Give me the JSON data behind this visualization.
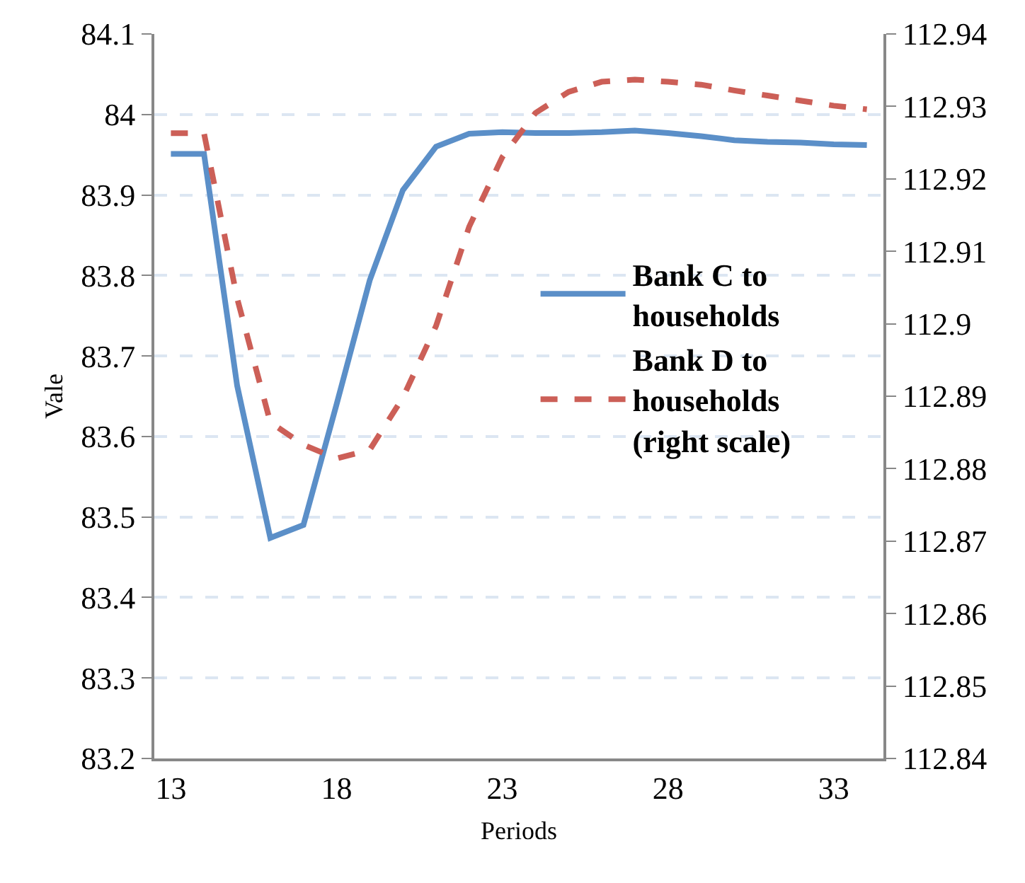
{
  "chart_data": {
    "type": "line",
    "xlabel": "Periods",
    "ylabel": "Vale",
    "x": [
      13,
      14,
      15,
      16,
      17,
      18,
      19,
      20,
      21,
      22,
      23,
      24,
      25,
      26,
      27,
      28,
      29,
      30,
      31,
      32,
      33,
      34
    ],
    "series": [
      {
        "name": "Bank C to households",
        "color": "#5b8fc8",
        "line_style": "solid",
        "values": [
          83.951,
          83.951,
          83.663,
          83.474,
          83.49,
          83.64,
          83.794,
          83.906,
          83.96,
          83.976,
          83.978,
          83.977,
          83.977,
          83.978,
          83.98,
          83.977,
          83.973,
          83.968,
          83.966,
          83.965,
          83.963,
          83.962
        ]
      },
      {
        "name": "Bank D to households (right scale)",
        "color": "#cc5f57",
        "line_style": "dashed",
        "axis": "y2",
        "values": [
          112.9263,
          112.9263,
          112.9035,
          112.8864,
          112.8833,
          112.8814,
          112.8826,
          112.8898,
          112.8997,
          112.9134,
          112.923,
          112.9291,
          112.932,
          112.9334,
          112.9337,
          112.9334,
          112.933,
          112.9322,
          112.9315,
          112.9308,
          112.9301,
          112.9296
        ]
      }
    ],
    "xlim": [
      12.5,
      34.5
    ],
    "xticks": [
      13,
      18,
      23,
      28,
      33
    ],
    "ylim": [
      83.2,
      84.1
    ],
    "yticks": [
      83.2,
      83.3,
      83.4,
      83.5,
      83.6,
      83.7,
      83.8,
      83.9,
      84,
      84.1
    ],
    "y2lim": [
      112.84,
      112.94
    ],
    "y2ticks": [
      112.84,
      112.85,
      112.86,
      112.87,
      112.88,
      112.89,
      112.9,
      112.91,
      112.92,
      112.93,
      112.94
    ],
    "grid": "y",
    "legend": "right",
    "marker": "none"
  }
}
